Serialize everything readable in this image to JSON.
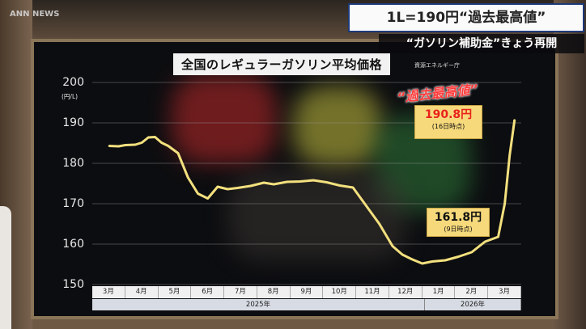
{
  "broadcast": {
    "logo": "ANN NEWS",
    "headline": "1L=190円“過去最高値”",
    "subheadline": "“ガソリン補助金”きょう再開"
  },
  "chart_data": {
    "type": "line",
    "title": "全国のレギュラーガソリン平均価格",
    "source": "資源エネルギー庁",
    "ylabel": "(円/L)",
    "ylim": [
      150,
      200
    ],
    "yticks": [
      "200",
      "190",
      "180",
      "170",
      "160",
      "150"
    ],
    "months": [
      "3月",
      "4月",
      "5月",
      "6月",
      "7月",
      "8月",
      "9月",
      "10月",
      "11月",
      "12月",
      "1月",
      "2月",
      "3月"
    ],
    "years": [
      "2025年",
      "2026年"
    ],
    "series": [
      {
        "x": [
          0.0,
          0.3,
          0.5,
          0.8,
          1.0,
          1.2,
          1.4,
          1.6,
          1.8,
          2.1,
          2.4,
          2.7,
          3.0,
          3.3,
          3.6,
          3.9,
          4.3,
          4.7,
          5.0,
          5.4,
          5.8,
          6.2,
          6.6,
          7.0,
          7.4,
          7.8,
          8.2,
          8.6,
          8.9,
          9.2,
          9.5,
          9.8,
          10.2,
          10.6,
          11.0,
          11.4,
          11.8,
          12.0,
          12.15,
          12.3
        ],
        "y": [
          184.3,
          184.2,
          184.5,
          184.6,
          185.1,
          186.4,
          186.5,
          185.1,
          184.3,
          182.5,
          176.5,
          172.5,
          171.3,
          174.2,
          173.6,
          173.9,
          174.4,
          175.2,
          174.8,
          175.4,
          175.5,
          175.8,
          175.3,
          174.5,
          174.0,
          169.5,
          165.0,
          159.5,
          157.4,
          156.2,
          155.2,
          155.7,
          156.0,
          156.9,
          158.0,
          160.6,
          161.8,
          170.0,
          182.0,
          190.8
        ]
      }
    ],
    "annotations": {
      "old_high": "“過去最高値”",
      "high_value": "190.8円",
      "high_note": "(16日時点)",
      "low_value": "161.8円",
      "low_note": "(9日時点)"
    },
    "colors": {
      "line": "#f3e07e",
      "callout": "#f6d97b",
      "highlight": "#e8231c"
    }
  }
}
